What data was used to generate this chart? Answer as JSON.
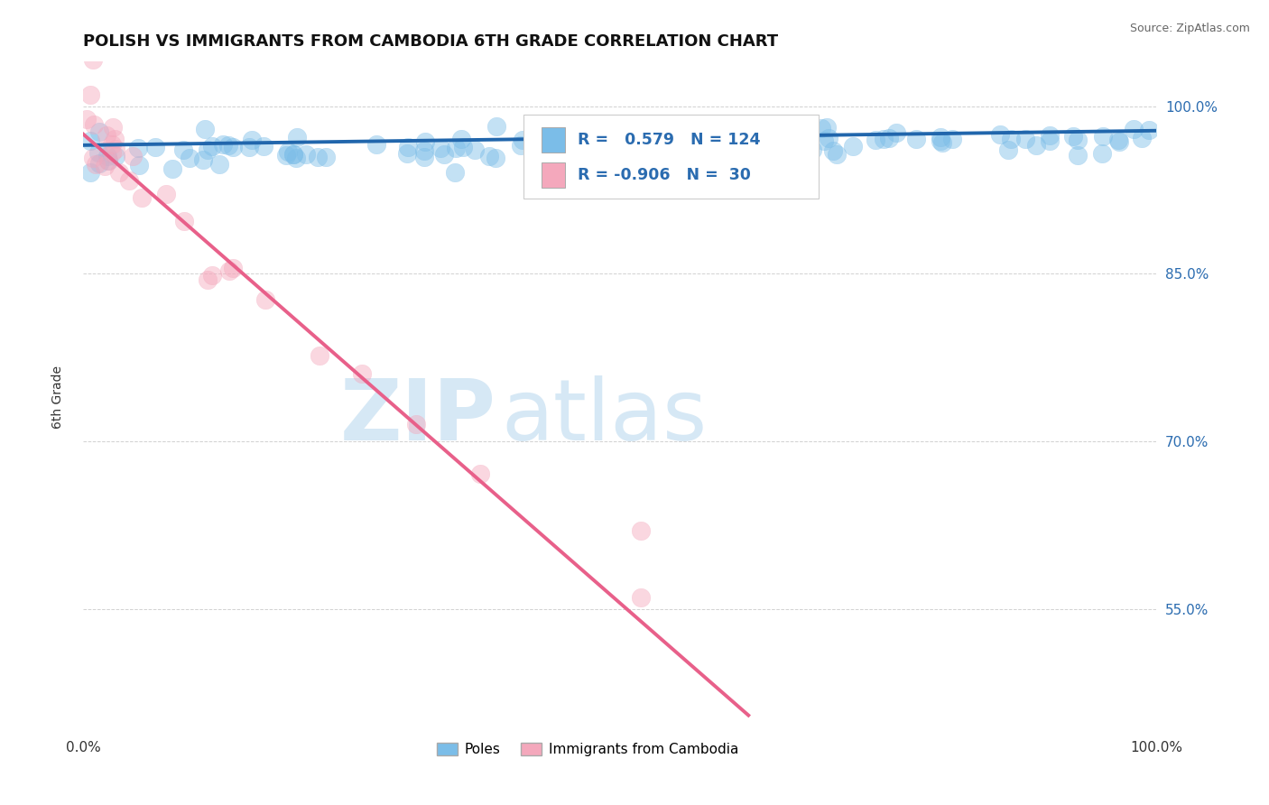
{
  "title": "POLISH VS IMMIGRANTS FROM CAMBODIA 6TH GRADE CORRELATION CHART",
  "source": "Source: ZipAtlas.com",
  "ylabel": "6th Grade",
  "xlim": [
    0.0,
    1.0
  ],
  "ylim": [
    0.44,
    1.04
  ],
  "yticks": [
    0.55,
    0.7,
    0.85,
    1.0
  ],
  "ytick_labels": [
    "55.0%",
    "70.0%",
    "85.0%",
    "100.0%"
  ],
  "xtick_labels": [
    "0.0%",
    "100.0%"
  ],
  "blue_R": 0.579,
  "blue_N": 124,
  "pink_R": -0.906,
  "pink_N": 30,
  "blue_color": "#7bbde8",
  "pink_color": "#f4a8bc",
  "blue_line_color": "#2166ac",
  "pink_line_color": "#e8608a",
  "legend_label_blue": "Poles",
  "legend_label_pink": "Immigrants from Cambodia",
  "watermark_zip": "ZIP",
  "watermark_atlas": "atlas",
  "watermark_color": "#d6e8f5",
  "grid_color": "#cccccc",
  "background_color": "#ffffff",
  "title_fontsize": 13,
  "source_fontsize": 9,
  "legend_text_color": "#2b6cb0",
  "blue_trend_start_y": 0.965,
  "blue_trend_end_y": 0.978,
  "pink_trend_start_x": 0.0,
  "pink_trend_start_y": 0.975,
  "pink_trend_end_x": 0.62,
  "pink_trend_end_y": 0.455
}
